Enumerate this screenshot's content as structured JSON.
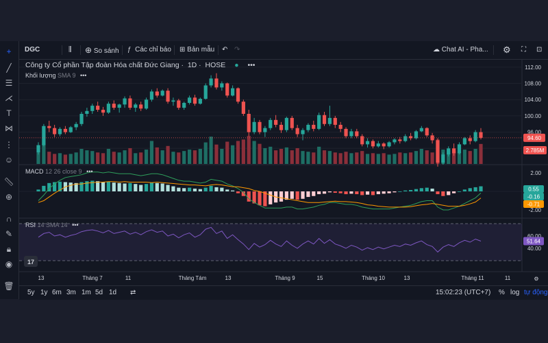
{
  "toolbar": {
    "symbol": "DGC",
    "compare_label": "So sánh",
    "indicators_label": "Các chỉ báo",
    "templates_label": "Bản mẫu",
    "chat_label": "Chat AI - Pha..."
  },
  "legend": {
    "main_title": "Công ty Cổ phần Tập đoàn Hóa chất Đức Giang",
    "interval": "1D",
    "exchange": "HOSE",
    "volume_label": "Khối lượng",
    "volume_ma": "SMA 9",
    "macd_label": "MACD",
    "macd_params": "12 26 close 9",
    "rsi_label": "RSI",
    "rsi_params": "14 SMA 14"
  },
  "bottombar": {
    "ranges": [
      "5y",
      "1y",
      "6m",
      "3m",
      "1m",
      "5d",
      "1d"
    ],
    "time": "15:02:23 (UTC+7)",
    "percent": "%",
    "log": "log",
    "auto": "tự động"
  },
  "colors": {
    "up": "#26a69a",
    "down": "#ef5350",
    "vol_up": "#1e6e64",
    "vol_down": "#8b2f3a",
    "macd_line": "#2e9e5b",
    "signal_line": "#ff9800",
    "rsi_line": "#7e57c2",
    "background": "#131722"
  },
  "chart_data": {
    "type": "candlestick",
    "price_axis_ticks": [
      112.0,
      108.0,
      104.0,
      100.0,
      96.0,
      92.0
    ],
    "last_price": "94.60",
    "last_volume": "2.785M",
    "macd_axis_ticks": [
      2.0,
      -2.0
    ],
    "macd_values": {
      "histogram": "0.55",
      "macd": "-0.16",
      "signal": "-0.71"
    },
    "rsi_axis_ticks": [
      60.0,
      40.0
    ],
    "rsi_value": "51.64",
    "time_axis_labels": [
      "13",
      "Tháng 7",
      "11",
      "Tháng Tám",
      "13",
      "Tháng 9",
      "15",
      "Tháng 10",
      "13",
      "Tháng 11",
      "11"
    ],
    "candles": [
      [
        91,
        93.5,
        90.5,
        92.8
      ],
      [
        92.8,
        98,
        92.5,
        97.5
      ],
      [
        97.5,
        98.8,
        96,
        97
      ],
      [
        97,
        97.8,
        94.8,
        95.5
      ],
      [
        95.5,
        97.2,
        95,
        96.8
      ],
      [
        96.8,
        97.5,
        95.5,
        96
      ],
      [
        96,
        97.5,
        95.8,
        97.2
      ],
      [
        97.2,
        98.5,
        96.5,
        98
      ],
      [
        98,
        101,
        97.5,
        100.5
      ],
      [
        100.5,
        102,
        99.8,
        101.2
      ],
      [
        101.2,
        103,
        100.5,
        102.5
      ],
      [
        102.5,
        103.5,
        101,
        101.5
      ],
      [
        101.5,
        102.2,
        100,
        100.8
      ],
      [
        100.8,
        103.5,
        100.5,
        103
      ],
      [
        103,
        103.8,
        101.5,
        102
      ],
      [
        102,
        103,
        100.8,
        102.8
      ],
      [
        102.8,
        104.8,
        102,
        104.3
      ],
      [
        104.3,
        105,
        101.5,
        102
      ],
      [
        102,
        103.2,
        101,
        102.8
      ],
      [
        102.8,
        103.5,
        101.2,
        101.8
      ],
      [
        101.8,
        104.5,
        101.5,
        104
      ],
      [
        104,
        106.5,
        103.5,
        106
      ],
      [
        106,
        106.8,
        104.5,
        105
      ],
      [
        105,
        106.5,
        104.8,
        106.2
      ],
      [
        106.2,
        106.8,
        103,
        103.5
      ],
      [
        103.5,
        104.5,
        102.5,
        103.8
      ],
      [
        103.8,
        104.2,
        101.5,
        102
      ],
      [
        102,
        103.5,
        101.5,
        103.2
      ],
      [
        103.2,
        105,
        102.8,
        104.5
      ],
      [
        104.5,
        105.2,
        102.5,
        103
      ],
      [
        103,
        104.5,
        102.8,
        104.2
      ],
      [
        104.2,
        108,
        104,
        107.5
      ],
      [
        107.5,
        110,
        107,
        109.2
      ],
      [
        109.2,
        110.5,
        106.5,
        107
      ],
      [
        107,
        108.5,
        106.2,
        108
      ],
      [
        108,
        108.2,
        104.5,
        105
      ],
      [
        105,
        107.5,
        104.8,
        106.8
      ],
      [
        106.8,
        107,
        103,
        103.5
      ],
      [
        103.5,
        104,
        100,
        100.5
      ],
      [
        100.5,
        101.5,
        95,
        96
      ],
      [
        96,
        99.5,
        95.5,
        98.5
      ],
      [
        98.5,
        99,
        95.5,
        96
      ],
      [
        96,
        97.5,
        94.8,
        97
      ],
      [
        97,
        99.5,
        96.5,
        99
      ],
      [
        99,
        100.2,
        97.2,
        97.8
      ],
      [
        97.8,
        98.5,
        95.8,
        96.5
      ],
      [
        96.5,
        99.8,
        96,
        99.5
      ],
      [
        99.5,
        100,
        96.5,
        97
      ],
      [
        97,
        97.8,
        94.8,
        95.5
      ],
      [
        95.5,
        97,
        94,
        96.5
      ],
      [
        96.5,
        98.2,
        96,
        97.8
      ],
      [
        97.8,
        98.8,
        96.2,
        96.8
      ],
      [
        96.8,
        100.8,
        96.5,
        100.2
      ],
      [
        100.2,
        101,
        97.5,
        98
      ],
      [
        98,
        102.5,
        97.5,
        99.5
      ],
      [
        99.5,
        100,
        97,
        97.8
      ],
      [
        97.8,
        98.5,
        96,
        96.8
      ],
      [
        96.8,
        97.2,
        94.5,
        95
      ],
      [
        95,
        96.8,
        94.5,
        96.2
      ],
      [
        96.2,
        96.8,
        94.5,
        95
      ],
      [
        95,
        95.5,
        92.5,
        93
      ],
      [
        93,
        94.5,
        92.2,
        93.8
      ],
      [
        93.8,
        94.2,
        92,
        92.5
      ],
      [
        92.5,
        93.8,
        92.2,
        93.2
      ],
      [
        93.2,
        93.5,
        91.8,
        92.5
      ],
      [
        92.5,
        93.8,
        92.2,
        93.5
      ],
      [
        93.5,
        94.5,
        93,
        94.2
      ],
      [
        94.2,
        94.8,
        93.2,
        93.8
      ],
      [
        93.8,
        95.5,
        93.5,
        95
      ],
      [
        95,
        95.8,
        94,
        94.5
      ],
      [
        94.5,
        96.5,
        94.2,
        96.2
      ],
      [
        96.2,
        97.5,
        96,
        97
      ],
      [
        97,
        97.2,
        94.8,
        95.2
      ],
      [
        95.2,
        95.8,
        93.2,
        94
      ],
      [
        94,
        94.5,
        87.5,
        88.5
      ],
      [
        88.5,
        91,
        88,
        90.5
      ],
      [
        90.5,
        92.5,
        90,
        92
      ],
      [
        92,
        93.2,
        90.2,
        90.8
      ],
      [
        90.8,
        93.5,
        90.5,
        93
      ],
      [
        93,
        94.8,
        92.8,
        94.5
      ],
      [
        94.5,
        95.2,
        93,
        93.8
      ],
      [
        93.8,
        96.5,
        93.5,
        96
      ],
      [
        96,
        97,
        94.2,
        94.6
      ]
    ],
    "volumes": [
      1.6,
      2.8,
      1.7,
      1.4,
      1.5,
      1.3,
      1.4,
      1.6,
      2.1,
      1.9,
      1.8,
      1.6,
      1.5,
      2.1,
      1.7,
      1.6,
      1.9,
      2.2,
      1.5,
      1.6,
      2.0,
      3.2,
      2.3,
      1.9,
      2.5,
      1.7,
      1.6,
      1.8,
      2.0,
      1.9,
      2.1,
      3.0,
      3.8,
      2.7,
      2.1,
      3.1,
      2.6,
      3.2,
      3.4,
      3.9,
      3.2,
      2.8,
      2.2,
      2.4,
      1.9,
      2.1,
      2.3,
      1.9,
      2.2,
      1.8,
      1.7,
      1.6,
      2.4,
      1.9,
      1.8,
      1.6,
      1.5,
      1.7,
      1.5,
      1.6,
      1.8,
      1.4,
      1.5,
      1.4,
      1.5,
      1.3,
      1.4,
      1.6,
      1.5,
      1.6,
      1.8,
      2.1,
      1.9,
      1.6,
      3.4,
      2.0,
      1.9,
      1.8,
      1.7,
      2.0,
      1.8,
      2.1,
      2.785
    ],
    "macd_hist": [
      0.2,
      0.6,
      0.9,
      1.0,
      1.05,
      1.0,
      0.95,
      0.9,
      1.0,
      1.1,
      1.15,
      1.1,
      1.0,
      1.05,
      0.95,
      0.9,
      0.85,
      0.9,
      0.8,
      0.7,
      0.8,
      0.95,
      0.9,
      0.85,
      0.7,
      0.55,
      0.4,
      0.35,
      0.4,
      0.3,
      0.25,
      0.4,
      0.6,
      0.45,
      0.4,
      0.2,
      0.1,
      -0.2,
      -0.5,
      -1.1,
      -1.3,
      -1.5,
      -1.6,
      -1.4,
      -1.2,
      -1.1,
      -0.9,
      -0.8,
      -0.9,
      -0.8,
      -0.6,
      -0.5,
      -0.3,
      -0.25,
      -0.1,
      -0.15,
      -0.2,
      -0.3,
      -0.25,
      -0.3,
      -0.4,
      -0.35,
      -0.4,
      -0.3,
      -0.25,
      -0.2,
      -0.1,
      0.0,
      0.1,
      0.15,
      0.25,
      0.35,
      0.4,
      0.3,
      -0.3,
      -0.5,
      -0.4,
      -0.2,
      0.0,
      0.2,
      0.35,
      0.45,
      0.55
    ],
    "macd_line": [
      -1.0,
      -0.4,
      0.3,
      0.8,
      1.2,
      1.5,
      1.6,
      1.7,
      1.8,
      2.0,
      2.1,
      2.1,
      2.0,
      2.1,
      2.0,
      1.9,
      1.9,
      1.9,
      1.8,
      1.7,
      1.8,
      1.9,
      1.9,
      1.8,
      1.6,
      1.4,
      1.2,
      1.1,
      1.1,
      1.0,
      0.9,
      1.0,
      1.3,
      1.2,
      1.1,
      0.8,
      0.6,
      0.3,
      -0.1,
      -0.8,
      -1.2,
      -1.5,
      -1.8,
      -1.8,
      -1.8,
      -1.8,
      -1.7,
      -1.7,
      -1.9,
      -1.9,
      -1.8,
      -1.7,
      -1.5,
      -1.4,
      -1.2,
      -1.2,
      -1.3,
      -1.4,
      -1.4,
      -1.5,
      -1.7,
      -1.8,
      -1.9,
      -1.9,
      -1.9,
      -1.9,
      -1.8,
      -1.7,
      -1.6,
      -1.5,
      -1.3,
      -1.1,
      -1.0,
      -1.0,
      -1.7,
      -2.0,
      -2.0,
      -1.8,
      -1.6,
      -1.3,
      -1.0,
      -0.7,
      -0.16
    ],
    "signal_line": [
      -1.2,
      -1.0,
      -0.6,
      -0.2,
      0.15,
      0.5,
      0.65,
      0.8,
      0.8,
      0.9,
      0.95,
      1.0,
      1.0,
      1.05,
      1.05,
      1.0,
      1.05,
      1.0,
      1.0,
      1.0,
      1.0,
      0.95,
      1.0,
      0.95,
      0.9,
      0.85,
      0.8,
      0.75,
      0.7,
      0.7,
      0.65,
      0.6,
      0.7,
      0.75,
      0.7,
      0.6,
      0.5,
      0.5,
      0.4,
      0.3,
      0.1,
      0.0,
      -0.2,
      -0.4,
      -0.6,
      -0.7,
      -0.8,
      -0.9,
      -1.0,
      -1.1,
      -1.2,
      -1.2,
      -1.2,
      -1.15,
      -1.1,
      -1.05,
      -1.1,
      -1.1,
      -1.15,
      -1.2,
      -1.3,
      -1.45,
      -1.5,
      -1.6,
      -1.65,
      -1.7,
      -1.7,
      -1.7,
      -1.7,
      -1.65,
      -1.55,
      -1.45,
      -1.4,
      -1.3,
      -1.4,
      -1.5,
      -1.6,
      -1.6,
      -1.6,
      -1.5,
      -1.35,
      -1.15,
      -0.71
    ],
    "rsi": [
      58,
      64,
      66,
      60,
      62,
      58,
      61,
      63,
      67,
      69,
      70,
      68,
      65,
      69,
      64,
      66,
      68,
      63,
      66,
      62,
      67,
      70,
      66,
      68,
      60,
      63,
      57,
      62,
      65,
      58,
      62,
      71,
      74,
      64,
      68,
      56,
      62,
      54,
      47,
      38,
      48,
      42,
      46,
      53,
      47,
      43,
      52,
      45,
      40,
      47,
      52,
      47,
      56,
      48,
      54,
      47,
      44,
      40,
      45,
      42,
      37,
      41,
      38,
      42,
      39,
      42,
      45,
      43,
      47,
      45,
      49,
      52,
      46,
      43,
      34,
      42,
      46,
      43,
      49,
      53,
      50,
      55,
      51.64
    ]
  }
}
